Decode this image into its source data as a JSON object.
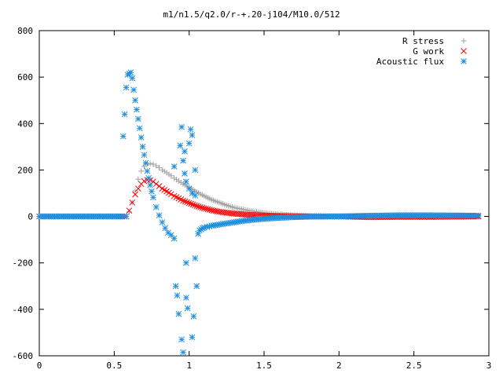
{
  "chart_data": {
    "type": "scatter",
    "title": "m1/n1.5/q2.0/r-+.20-j104/M10.0/512",
    "xlabel": "",
    "ylabel": "",
    "xlim": [
      0,
      3
    ],
    "ylim": [
      -600,
      800
    ],
    "xticks": [
      "0",
      "0.5",
      "1",
      "1.5",
      "2",
      "2.5",
      "3"
    ],
    "yticks": [
      "-600",
      "-400",
      "-200",
      "0",
      "200",
      "400",
      "600",
      "800"
    ],
    "legend_position": "top-right",
    "grid": false,
    "series": [
      {
        "name": "R stress",
        "marker": "plus",
        "color": "#a0a0a0",
        "points": [
          [
            0,
            0
          ],
          [
            0.1,
            0
          ],
          [
            0.2,
            0
          ],
          [
            0.3,
            0
          ],
          [
            0.4,
            0
          ],
          [
            0.5,
            0
          ],
          [
            0.58,
            0
          ],
          [
            0.6,
            20
          ],
          [
            0.62,
            60
          ],
          [
            0.64,
            110
          ],
          [
            0.66,
            160
          ],
          [
            0.68,
            195
          ],
          [
            0.7,
            215
          ],
          [
            0.72,
            225
          ],
          [
            0.74,
            228
          ],
          [
            0.76,
            225
          ],
          [
            0.78,
            218
          ],
          [
            0.8,
            210
          ],
          [
            0.82,
            200
          ],
          [
            0.85,
            188
          ],
          [
            0.88,
            175
          ],
          [
            0.9,
            165
          ],
          [
            0.93,
            152
          ],
          [
            0.96,
            140
          ],
          [
            1.0,
            125
          ],
          [
            1.05,
            105
          ],
          [
            1.1,
            88
          ],
          [
            1.15,
            72
          ],
          [
            1.2,
            60
          ],
          [
            1.25,
            48
          ],
          [
            1.3,
            38
          ],
          [
            1.4,
            25
          ],
          [
            1.5,
            15
          ],
          [
            1.6,
            9
          ],
          [
            1.7,
            5
          ],
          [
            1.8,
            3
          ],
          [
            1.9,
            2
          ],
          [
            2.0,
            1
          ],
          [
            2.2,
            1
          ],
          [
            2.4,
            0
          ],
          [
            2.6,
            0
          ],
          [
            2.8,
            0
          ],
          [
            2.93,
            0
          ]
        ]
      },
      {
        "name": "G work",
        "marker": "cross",
        "color": "#ff0000",
        "points": [
          [
            0,
            0
          ],
          [
            0.1,
            0
          ],
          [
            0.2,
            0
          ],
          [
            0.3,
            0
          ],
          [
            0.4,
            0
          ],
          [
            0.5,
            0
          ],
          [
            0.58,
            0
          ],
          [
            0.6,
            25
          ],
          [
            0.62,
            60
          ],
          [
            0.64,
            95
          ],
          [
            0.66,
            120
          ],
          [
            0.68,
            140
          ],
          [
            0.7,
            152
          ],
          [
            0.72,
            157
          ],
          [
            0.74,
            156
          ],
          [
            0.76,
            150
          ],
          [
            0.78,
            140
          ],
          [
            0.8,
            130
          ],
          [
            0.82,
            120
          ],
          [
            0.85,
            108
          ],
          [
            0.88,
            96
          ],
          [
            0.9,
            88
          ],
          [
            0.93,
            78
          ],
          [
            0.96,
            68
          ],
          [
            1.0,
            58
          ],
          [
            1.05,
            45
          ],
          [
            1.1,
            35
          ],
          [
            1.15,
            27
          ],
          [
            1.2,
            20
          ],
          [
            1.3,
            12
          ],
          [
            1.4,
            7
          ],
          [
            1.5,
            4
          ],
          [
            1.6,
            2
          ],
          [
            1.7,
            1
          ],
          [
            1.8,
            0
          ],
          [
            2.0,
            0
          ],
          [
            2.2,
            -3
          ],
          [
            2.4,
            -2
          ],
          [
            2.6,
            -2
          ],
          [
            2.8,
            -1
          ],
          [
            2.93,
            0
          ]
        ]
      },
      {
        "name": "Acoustic flux",
        "marker": "star",
        "color": "#1f8fe0",
        "points": [
          [
            0,
            0
          ],
          [
            0.05,
            0
          ],
          [
            0.1,
            0
          ],
          [
            0.15,
            0
          ],
          [
            0.2,
            0
          ],
          [
            0.25,
            0
          ],
          [
            0.3,
            0
          ],
          [
            0.35,
            0
          ],
          [
            0.4,
            0
          ],
          [
            0.45,
            0
          ],
          [
            0.5,
            0
          ],
          [
            0.55,
            0
          ],
          [
            0.58,
            0
          ],
          [
            0.56,
            345
          ],
          [
            0.57,
            440
          ],
          [
            0.58,
            555
          ],
          [
            0.59,
            610
          ],
          [
            0.6,
            615
          ],
          [
            0.61,
            620
          ],
          [
            0.62,
            595
          ],
          [
            0.63,
            545
          ],
          [
            0.64,
            500
          ],
          [
            0.65,
            460
          ],
          [
            0.66,
            420
          ],
          [
            0.67,
            380
          ],
          [
            0.68,
            340
          ],
          [
            0.69,
            300
          ],
          [
            0.7,
            265
          ],
          [
            0.71,
            230
          ],
          [
            0.72,
            195
          ],
          [
            0.73,
            165
          ],
          [
            0.74,
            135
          ],
          [
            0.75,
            108
          ],
          [
            0.76,
            82
          ],
          [
            0.78,
            40
          ],
          [
            0.8,
            5
          ],
          [
            0.82,
            -25
          ],
          [
            0.84,
            -50
          ],
          [
            0.86,
            -70
          ],
          [
            0.88,
            -80
          ],
          [
            0.9,
            -95
          ],
          [
            0.9,
            215
          ],
          [
            0.91,
            -300
          ],
          [
            0.92,
            -340
          ],
          [
            0.93,
            -420
          ],
          [
            0.94,
            305
          ],
          [
            0.95,
            385
          ],
          [
            0.95,
            -530
          ],
          [
            0.96,
            -585
          ],
          [
            0.97,
            280
          ],
          [
            0.98,
            -200
          ],
          [
            0.98,
            -350
          ],
          [
            0.99,
            -395
          ],
          [
            1.0,
            315
          ],
          [
            1.01,
            375
          ],
          [
            1.02,
            350
          ],
          [
            1.02,
            -520
          ],
          [
            1.03,
            -430
          ],
          [
            1.04,
            200
          ],
          [
            1.04,
            -180
          ],
          [
            1.05,
            -300
          ],
          [
            1.06,
            -75
          ],
          [
            1.07,
            -60
          ],
          [
            1.08,
            -55
          ],
          [
            1.09,
            -50
          ],
          [
            1.1,
            -48
          ],
          [
            1.12,
            -45
          ],
          [
            1.15,
            -40
          ],
          [
            1.2,
            -35
          ],
          [
            1.25,
            -30
          ],
          [
            1.3,
            -25
          ],
          [
            1.35,
            -20
          ],
          [
            1.4,
            -16
          ],
          [
            1.5,
            -10
          ],
          [
            1.6,
            -6
          ],
          [
            1.7,
            -3
          ],
          [
            1.8,
            -1
          ],
          [
            2.0,
            0
          ],
          [
            2.2,
            3
          ],
          [
            2.4,
            5
          ],
          [
            2.6,
            5
          ],
          [
            2.8,
            4
          ],
          [
            2.93,
            3
          ],
          [
            0.96,
            240
          ],
          [
            0.97,
            185
          ],
          [
            0.98,
            150
          ],
          [
            1.0,
            120
          ],
          [
            1.02,
            100
          ],
          [
            1.04,
            90
          ]
        ]
      }
    ]
  }
}
